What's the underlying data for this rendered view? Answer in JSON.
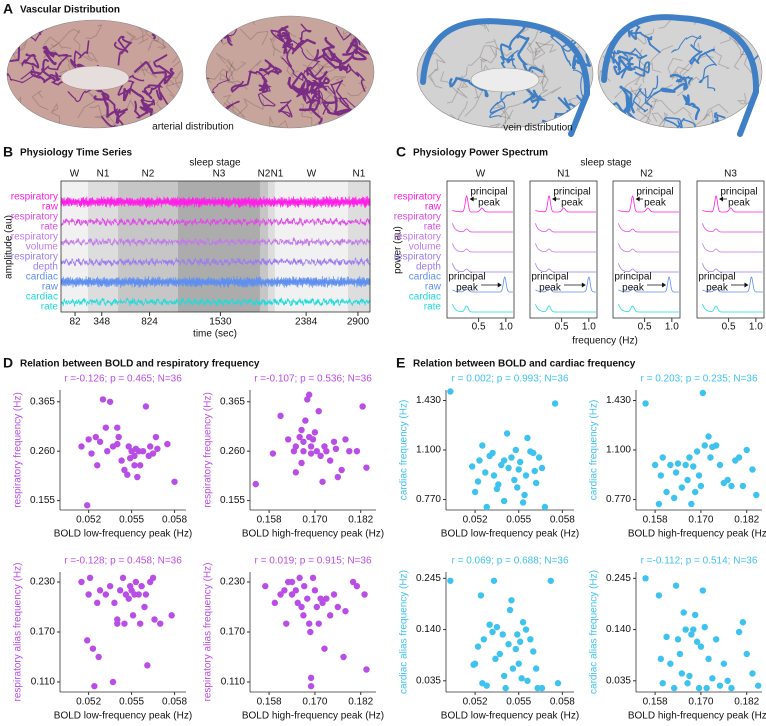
{
  "panel_a": {
    "letter": "A",
    "title": "Vascular Distribution",
    "arterial_label": "arterial distribution",
    "vein_label": "vein distribution"
  },
  "panel_b": {
    "letter": "B",
    "title": "Physiology Time Series",
    "stage_axis_label": "sleep stage",
    "ylabel": "amplitude (au)",
    "xlabel": "time (sec)",
    "xlim": [
      -58,
      3020
    ],
    "xticks": [
      82,
      348,
      824,
      1530,
      2384,
      2900
    ],
    "stages": [
      {
        "label": "W",
        "start": -58,
        "end": 211
      },
      {
        "label": "N1",
        "start": 211,
        "end": 510
      },
      {
        "label": "N2",
        "start": 510,
        "end": 1107
      },
      {
        "label": "N3",
        "start": 1107,
        "end": 1924
      },
      {
        "label": "N2",
        "start": 1924,
        "end": 2004
      },
      {
        "label": "N1",
        "start": 2004,
        "end": 2073
      },
      {
        "label": "W",
        "start": 2073,
        "end": 2800
      },
      {
        "label": "N1",
        "start": 2800,
        "end": 3020
      }
    ],
    "stage_colors": {
      "W": "#f1f1f1",
      "N1": "#dddddd",
      "N2": "#c6c6c6",
      "N3": "#acacac"
    }
  },
  "signals": [
    {
      "lines": [
        "respiratory",
        "raw"
      ],
      "color": "#ff1ee8"
    },
    {
      "lines": [
        "respiratory",
        "rate"
      ],
      "color": "#e04ae8"
    },
    {
      "lines": [
        "respiratory",
        "volume"
      ],
      "color": "#c27aea"
    },
    {
      "lines": [
        "respiratory",
        "depth"
      ],
      "color": "#9c7cf0"
    },
    {
      "lines": [
        "cardiac",
        "raw"
      ],
      "color": "#5e8ff0"
    },
    {
      "lines": [
        "cardiac",
        "rate"
      ],
      "color": "#1fdcdc"
    }
  ],
  "panel_c": {
    "letter": "C",
    "title": "Physiology Power Spectrum",
    "stage_axis_label": "sleep stage",
    "ylabel": "power (au)",
    "xlabel": "frequency (Hz)",
    "xlim": [
      -0.08,
      1.15
    ],
    "xticks": [
      0.5,
      {
        "value": 1,
        "label": "1.0"
      }
    ],
    "annotation": [
      "principal",
      "peak"
    ],
    "columns": [
      {
        "stage": "W",
        "respiratory_peak": 0.28,
        "cardiac_peak": 0.98
      },
      {
        "stage": "N1",
        "respiratory_peak": 0.27,
        "cardiac_peak": 1.0
      },
      {
        "stage": "N2",
        "respiratory_peak": 0.28,
        "cardiac_peak": 0.95
      },
      {
        "stage": "N3",
        "respiratory_peak": 0.27,
        "cardiac_peak": 0.92
      }
    ]
  },
  "panel_d": {
    "letter": "D",
    "title": "Relation between BOLD and respiratory frequency"
  },
  "panel_e": {
    "letter": "E",
    "title": "Relation between BOLD and cardiac frequency"
  },
  "chart_data": [
    {
      "type": "scatter",
      "title": "r =-0.126; p = 0.465; N=36",
      "xlabel": "BOLD low-frequency peak (Hz)",
      "ylabel": "respiratory frequency (Hz)",
      "color": "#b94ee6",
      "xlim": [
        0.05,
        0.0588
      ],
      "ylim": [
        0.135,
        0.39
      ],
      "xticks": [
        0.052,
        0.055,
        0.058
      ],
      "yticks": [
        0.155,
        {
          "value": 0.26,
          "label": "0.260"
        },
        0.365
      ],
      "x": [
        0.0515,
        0.0522,
        0.0525,
        0.053,
        0.0535,
        0.0532,
        0.0528,
        0.052,
        0.0537,
        0.054,
        0.054,
        0.0543,
        0.0545,
        0.0548,
        0.055,
        0.0552,
        0.0553,
        0.0555,
        0.0556,
        0.0558,
        0.056,
        0.0562,
        0.0563,
        0.0565,
        0.0567,
        0.0552,
        0.0549,
        0.0541,
        0.0533,
        0.0526,
        0.0519,
        0.0547,
        0.0554,
        0.0575,
        0.058,
        0.0568
      ],
      "y": [
        0.27,
        0.255,
        0.29,
        0.37,
        0.365,
        0.31,
        0.28,
        0.285,
        0.27,
        0.275,
        0.31,
        0.24,
        0.22,
        0.27,
        0.26,
        0.25,
        0.265,
        0.26,
        0.23,
        0.26,
        0.355,
        0.25,
        0.27,
        0.255,
        0.29,
        0.23,
        0.245,
        0.29,
        0.26,
        0.23,
        0.145,
        0.21,
        0.205,
        0.275,
        0.195,
        0.265
      ]
    },
    {
      "type": "scatter",
      "title": "r =-0.107; p = 0.536; N=36",
      "xlabel": "BOLD high-frequency peak (Hz)",
      "ylabel": "respiratory frequency (Hz)",
      "color": "#b94ee6",
      "xlim": [
        0.153,
        0.186
      ],
      "ylim": [
        0.135,
        0.39
      ],
      "xticks": [
        0.158,
        {
          "value": 0.17,
          "label": "0.170"
        },
        0.182
      ],
      "yticks": [
        0.155,
        {
          "value": 0.26,
          "label": "0.260"
        },
        0.365
      ],
      "x": [
        0.1545,
        0.159,
        0.161,
        0.163,
        0.1645,
        0.165,
        0.166,
        0.1665,
        0.167,
        0.167,
        0.1675,
        0.168,
        0.1685,
        0.1685,
        0.169,
        0.169,
        0.1695,
        0.17,
        0.1705,
        0.171,
        0.1715,
        0.172,
        0.1725,
        0.173,
        0.174,
        0.175,
        0.1755,
        0.176,
        0.177,
        0.178,
        0.179,
        0.181,
        0.1825,
        0.1835,
        0.1665,
        0.165
      ],
      "y": [
        0.19,
        0.255,
        0.335,
        0.285,
        0.26,
        0.27,
        0.29,
        0.305,
        0.28,
        0.26,
        0.325,
        0.37,
        0.38,
        0.29,
        0.255,
        0.27,
        0.285,
        0.3,
        0.26,
        0.345,
        0.25,
        0.195,
        0.27,
        0.26,
        0.24,
        0.28,
        0.265,
        0.205,
        0.22,
        0.285,
        0.26,
        0.26,
        0.355,
        0.225,
        0.235,
        0.215
      ]
    },
    {
      "type": "scatter",
      "title": "r =-0.128; p = 0.458; N=36",
      "xlabel": "BOLD low-frequency peak (Hz)",
      "ylabel": "respiratory alias frequency (Hz)",
      "color": "#b94ee6",
      "xlim": [
        0.05,
        0.0588
      ],
      "ylim": [
        0.098,
        0.242
      ],
      "xticks": [
        0.052,
        0.055,
        0.058
      ],
      "yticks": [
        {
          "value": 0.11,
          "label": "0.110"
        },
        {
          "value": 0.17,
          "label": "0.170"
        },
        {
          "value": 0.23,
          "label": "0.230"
        }
      ],
      "x": [
        0.0515,
        0.052,
        0.0523,
        0.0526,
        0.0528,
        0.0524,
        0.0527,
        0.0532,
        0.0535,
        0.0537,
        0.054,
        0.054,
        0.0542,
        0.0544,
        0.0546,
        0.0548,
        0.0549,
        0.055,
        0.0552,
        0.0553,
        0.0555,
        0.0556,
        0.0557,
        0.0559,
        0.056,
        0.0561,
        0.0563,
        0.0566,
        0.057,
        0.0578,
        0.0521,
        0.0519,
        0.0538,
        0.0545,
        0.0551,
        0.0565
      ],
      "y": [
        0.23,
        0.215,
        0.15,
        0.205,
        0.22,
        0.105,
        0.14,
        0.215,
        0.225,
        0.11,
        0.18,
        0.185,
        0.22,
        0.235,
        0.215,
        0.21,
        0.225,
        0.22,
        0.215,
        0.23,
        0.215,
        0.18,
        0.225,
        0.2,
        0.215,
        0.13,
        0.23,
        0.185,
        0.18,
        0.19,
        0.235,
        0.16,
        0.205,
        0.18,
        0.19,
        0.235
      ]
    },
    {
      "type": "scatter",
      "title": "r = 0.019; p = 0.915; N=36",
      "xlabel": "BOLD high-frequency peak (Hz)",
      "ylabel": "respiratory alias frequency (Hz)",
      "color": "#b94ee6",
      "xlim": [
        0.153,
        0.186
      ],
      "ylim": [
        0.098,
        0.242
      ],
      "xticks": [
        0.158,
        {
          "value": 0.17,
          "label": "0.170"
        },
        0.182
      ],
      "yticks": [
        {
          "value": 0.11,
          "label": "0.110"
        },
        {
          "value": 0.17,
          "label": "0.170"
        },
        {
          "value": 0.23,
          "label": "0.230"
        }
      ],
      "x": [
        0.157,
        0.1595,
        0.161,
        0.162,
        0.163,
        0.1625,
        0.164,
        0.165,
        0.1655,
        0.166,
        0.1665,
        0.167,
        0.1672,
        0.168,
        0.1685,
        0.1688,
        0.169,
        0.169,
        0.1695,
        0.17,
        0.1705,
        0.171,
        0.1715,
        0.172,
        0.1725,
        0.173,
        0.174,
        0.175,
        0.176,
        0.1775,
        0.178,
        0.18,
        0.181,
        0.183,
        0.1835,
        0.164
      ],
      "y": [
        0.225,
        0.205,
        0.215,
        0.22,
        0.23,
        0.18,
        0.215,
        0.22,
        0.205,
        0.235,
        0.2,
        0.19,
        0.225,
        0.21,
        0.18,
        0.17,
        0.115,
        0.105,
        0.235,
        0.22,
        0.2,
        0.18,
        0.21,
        0.205,
        0.15,
        0.21,
        0.19,
        0.215,
        0.2,
        0.14,
        0.195,
        0.23,
        0.225,
        0.215,
        0.125,
        0.23
      ]
    },
    {
      "type": "scatter",
      "title": "r = 0.002; p = 0.993; N=36",
      "xlabel": "BOLD low-frequency peak (Hz)",
      "ylabel": "cardiac frequency (Hz)",
      "color": "#3ec3ee",
      "xlim": [
        0.05,
        0.0588
      ],
      "ylim": [
        0.7,
        1.5
      ],
      "xticks": [
        0.052,
        0.055,
        0.058
      ],
      "yticks": [
        {
          "value": 0.77,
          "label": "0.770"
        },
        {
          "value": 1.1,
          "label": "1.100"
        },
        {
          "value": 1.43,
          "label": "1.430"
        }
      ],
      "x": [
        0.0503,
        0.0518,
        0.052,
        0.0523,
        0.0525,
        0.0527,
        0.053,
        0.0532,
        0.0533,
        0.0536,
        0.0538,
        0.054,
        0.054,
        0.0543,
        0.0545,
        0.0547,
        0.0548,
        0.055,
        0.0551,
        0.0553,
        0.0555,
        0.0556,
        0.0558,
        0.056,
        0.0562,
        0.0564,
        0.0566,
        0.0568,
        0.0575,
        0.0528,
        0.0535,
        0.0549,
        0.0554,
        0.0561,
        0.0542,
        0.0522
      ],
      "y": [
        1.49,
        0.99,
        0.82,
        1.03,
        1.13,
        0.95,
        1.06,
        1.08,
        0.93,
        0.87,
        1.0,
        1.03,
        0.76,
        0.98,
        1.05,
        0.9,
        1.1,
        0.97,
        1.02,
        0.75,
        0.93,
        1.18,
        1.09,
        1.08,
        0.88,
        1.05,
        0.98,
        0.72,
        1.41,
        0.72,
        0.84,
        0.85,
        0.8,
        0.96,
        1.21,
        0.89
      ]
    },
    {
      "type": "scatter",
      "title": "r = 0.203; p = 0.235; N=36",
      "xlabel": "BOLD high-frequency peak (Hz)",
      "ylabel": "cardiac frequency (Hz)",
      "color": "#3ec3ee",
      "xlim": [
        0.153,
        0.186
      ],
      "ylim": [
        0.7,
        1.5
      ],
      "xticks": [
        0.158,
        {
          "value": 0.17,
          "label": "0.170"
        },
        0.182
      ],
      "yticks": [
        {
          "value": 0.77,
          "label": "0.770"
        },
        {
          "value": 1.1,
          "label": "1.100"
        },
        {
          "value": 1.43,
          "label": "1.430"
        }
      ],
      "x": [
        0.1555,
        0.158,
        0.159,
        0.1595,
        0.16,
        0.161,
        0.162,
        0.163,
        0.1635,
        0.164,
        0.165,
        0.166,
        0.1665,
        0.167,
        0.168,
        0.1685,
        0.169,
        0.1695,
        0.17,
        0.1705,
        0.171,
        0.172,
        0.1725,
        0.173,
        0.174,
        0.175,
        0.176,
        0.177,
        0.178,
        0.179,
        0.18,
        0.181,
        0.182,
        0.1835,
        0.1845,
        0.1675
      ],
      "y": [
        1.41,
        1.0,
        0.74,
        0.93,
        1.05,
        0.82,
        1.0,
        0.78,
        0.95,
        1.01,
        0.85,
        1.0,
        0.9,
        1.05,
        0.99,
        0.82,
        1.09,
        0.93,
        0.86,
        1.48,
        1.13,
        1.19,
        1.05,
        1.12,
        1.13,
        1.0,
        0.88,
        0.9,
        0.86,
        1.03,
        1.05,
        0.86,
        1.1,
        0.97,
        0.8,
        0.74
      ]
    },
    {
      "type": "scatter",
      "title": "r = 0.069; p = 0.688; N=36",
      "xlabel": "BOLD low-frequency peak (Hz)",
      "ylabel": "cardiac alias frequency (Hz)",
      "color": "#3ec3ee",
      "xlim": [
        0.05,
        0.0588
      ],
      "ylim": [
        0.012,
        0.258
      ],
      "xticks": [
        0.052,
        0.055,
        0.058
      ],
      "yticks": [
        0.035,
        {
          "value": 0.14,
          "label": "0.140"
        },
        0.245
      ],
      "x": [
        0.0503,
        0.0519,
        0.052,
        0.0522,
        0.0524,
        0.0526,
        0.0528,
        0.053,
        0.0532,
        0.0533,
        0.0535,
        0.0537,
        0.0539,
        0.054,
        0.0541,
        0.0543,
        0.0545,
        0.0546,
        0.0548,
        0.0549,
        0.055,
        0.0552,
        0.0553,
        0.0555,
        0.0556,
        0.0558,
        0.056,
        0.0562,
        0.0563,
        0.0566,
        0.0572,
        0.0577,
        0.0525,
        0.0534,
        0.0551,
        0.0544
      ],
      "y": [
        0.24,
        0.068,
        0.07,
        0.105,
        0.21,
        0.12,
        0.025,
        0.15,
        0.135,
        0.24,
        0.145,
        0.09,
        0.13,
        0.045,
        0.02,
        0.11,
        0.2,
        0.06,
        0.1,
        0.13,
        0.07,
        0.04,
        0.155,
        0.14,
        0.035,
        0.12,
        0.095,
        0.06,
        0.02,
        0.02,
        0.24,
        0.03,
        0.03,
        0.08,
        0.115,
        0.18
      ]
    },
    {
      "type": "scatter",
      "title": "r =-0.112; p = 0.514; N=36",
      "xlabel": "BOLD high-frequency peak (Hz)",
      "ylabel": "cardiac alias frequency (Hz)",
      "color": "#3ec3ee",
      "xlim": [
        0.153,
        0.186
      ],
      "ylim": [
        0.012,
        0.258
      ],
      "xticks": [
        0.158,
        {
          "value": 0.17,
          "label": "0.170"
        },
        0.182
      ],
      "yticks": [
        0.035,
        {
          "value": 0.14,
          "label": "0.140"
        },
        0.245
      ],
      "x": [
        0.1555,
        0.159,
        0.1595,
        0.16,
        0.161,
        0.162,
        0.163,
        0.1635,
        0.164,
        0.165,
        0.1655,
        0.166,
        0.1665,
        0.167,
        0.1675,
        0.168,
        0.1685,
        0.169,
        0.1695,
        0.17,
        0.1705,
        0.171,
        0.1715,
        0.172,
        0.173,
        0.174,
        0.175,
        0.176,
        0.177,
        0.178,
        0.18,
        0.181,
        0.182,
        0.1835,
        0.185,
        0.1645
      ],
      "y": [
        0.245,
        0.21,
        0.08,
        0.03,
        0.125,
        0.07,
        0.02,
        0.23,
        0.12,
        0.05,
        0.175,
        0.14,
        0.03,
        0.045,
        0.13,
        0.14,
        0.17,
        0.115,
        0.02,
        0.105,
        0.22,
        0.145,
        0.02,
        0.08,
        0.04,
        0.12,
        0.025,
        0.07,
        0.035,
        0.02,
        0.135,
        0.155,
        0.09,
        0.05,
        0.025,
        0.09
      ]
    }
  ]
}
